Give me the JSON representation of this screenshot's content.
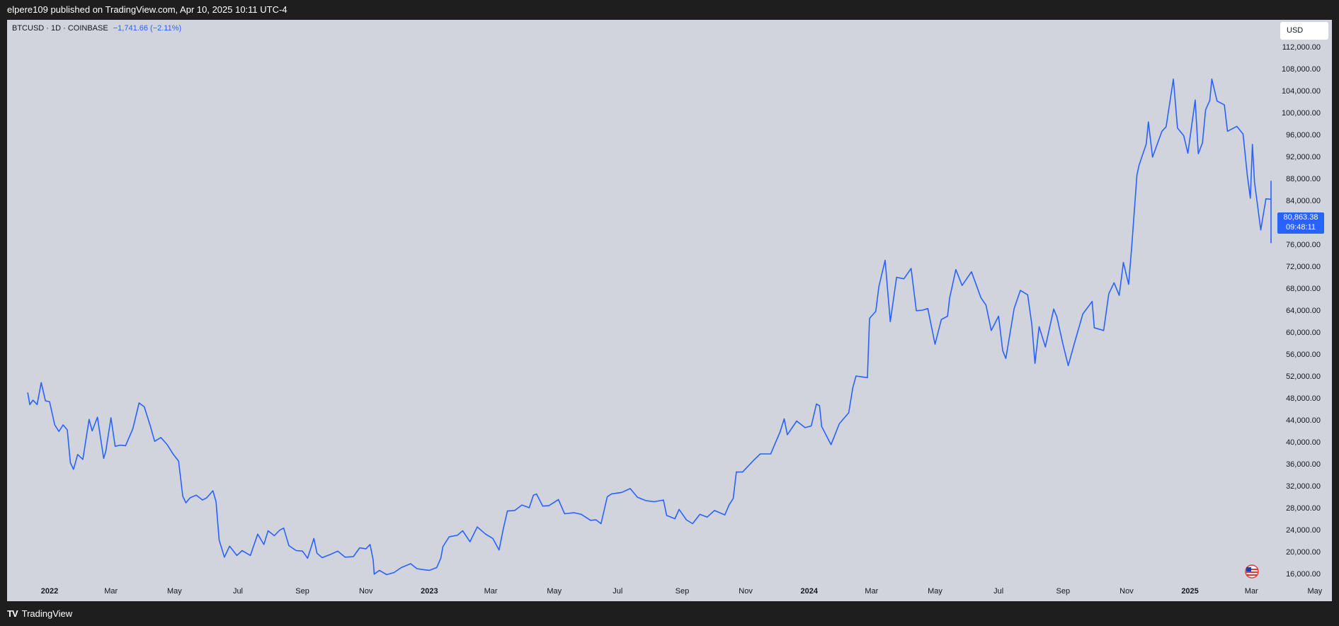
{
  "header": {
    "published": "elpere109 published on TradingView.com, Apr 10, 2025 10:11 UTC-4"
  },
  "footer": {
    "brand": "TradingView"
  },
  "symbol": {
    "name": "BTCUSD · 1D · COINBASE",
    "change": "−1,741.66 (−2.11%)"
  },
  "currency_button": "USD",
  "price_badge": {
    "price": "80,863.38",
    "timer": "09:48:11"
  },
  "colors": {
    "line": "#2962ff",
    "background": "#d1d4dc",
    "frame": "#1e1e1e"
  },
  "icons": {
    "flag": "us-flag-icon",
    "logo": "tradingview-logo-icon"
  },
  "chart_data": {
    "type": "line",
    "title": "BTCUSD · 1D · COINBASE",
    "xlabel": "",
    "ylabel": "",
    "ylim": [
      14000,
      114000
    ],
    "y_ticks": [
      "16,000.00",
      "20,000.00",
      "24,000.00",
      "28,000.00",
      "32,000.00",
      "36,000.00",
      "40,000.00",
      "44,000.00",
      "48,000.00",
      "52,000.00",
      "56,000.00",
      "60,000.00",
      "64,000.00",
      "68,000.00",
      "72,000.00",
      "76,000.00",
      "84,000.00",
      "88,000.00",
      "92,000.00",
      "96,000.00",
      "100,000.00",
      "104,000.00",
      "108,000.00",
      "112,000.00"
    ],
    "x_ticks": [
      {
        "label": "2022",
        "date": "2022-01-01",
        "bold": true
      },
      {
        "label": "Mar",
        "date": "2022-03-01"
      },
      {
        "label": "May",
        "date": "2022-05-01"
      },
      {
        "label": "Jul",
        "date": "2022-07-01"
      },
      {
        "label": "Sep",
        "date": "2022-09-01"
      },
      {
        "label": "Nov",
        "date": "2022-11-01"
      },
      {
        "label": "2023",
        "date": "2023-01-01",
        "bold": true
      },
      {
        "label": "Mar",
        "date": "2023-03-01"
      },
      {
        "label": "May",
        "date": "2023-05-01"
      },
      {
        "label": "Jul",
        "date": "2023-07-01"
      },
      {
        "label": "Sep",
        "date": "2023-09-01"
      },
      {
        "label": "Nov",
        "date": "2023-11-01"
      },
      {
        "label": "2024",
        "date": "2024-01-01",
        "bold": true
      },
      {
        "label": "Mar",
        "date": "2024-03-01"
      },
      {
        "label": "May",
        "date": "2024-05-01"
      },
      {
        "label": "Jul",
        "date": "2024-07-01"
      },
      {
        "label": "Sep",
        "date": "2024-09-01"
      },
      {
        "label": "Nov",
        "date": "2024-11-01"
      },
      {
        "label": "2025",
        "date": "2025-01-01",
        "bold": true
      },
      {
        "label": "Mar",
        "date": "2025-03-01"
      },
      {
        "label": "May",
        "date": "2025-05-01"
      }
    ],
    "series": [
      {
        "values": [
          [
            "2021-12-11",
            49000
          ],
          [
            "2021-12-13",
            46800
          ],
          [
            "2021-12-16",
            47600
          ],
          [
            "2021-12-20",
            46800
          ],
          [
            "2021-12-24",
            50800
          ],
          [
            "2021-12-28",
            47500
          ],
          [
            "2022-01-01",
            47300
          ],
          [
            "2022-01-06",
            43100
          ],
          [
            "2022-01-10",
            41900
          ],
          [
            "2022-01-14",
            43100
          ],
          [
            "2022-01-18",
            42200
          ],
          [
            "2022-01-21",
            36200
          ],
          [
            "2022-01-24",
            35000
          ],
          [
            "2022-01-28",
            37700
          ],
          [
            "2022-02-02",
            36800
          ],
          [
            "2022-02-08",
            44100
          ],
          [
            "2022-02-11",
            42000
          ],
          [
            "2022-02-16",
            44500
          ],
          [
            "2022-02-22",
            37000
          ],
          [
            "2022-02-24",
            38300
          ],
          [
            "2022-03-01",
            44400
          ],
          [
            "2022-03-05",
            39200
          ],
          [
            "2022-03-10",
            39400
          ],
          [
            "2022-03-15",
            39300
          ],
          [
            "2022-03-22",
            42400
          ],
          [
            "2022-03-28",
            47100
          ],
          [
            "2022-04-02",
            46400
          ],
          [
            "2022-04-08",
            42800
          ],
          [
            "2022-04-12",
            40100
          ],
          [
            "2022-04-18",
            40800
          ],
          [
            "2022-04-24",
            39500
          ],
          [
            "2022-04-30",
            37700
          ],
          [
            "2022-05-05",
            36500
          ],
          [
            "2022-05-09",
            30100
          ],
          [
            "2022-05-12",
            28900
          ],
          [
            "2022-05-16",
            29800
          ],
          [
            "2022-05-22",
            30300
          ],
          [
            "2022-05-28",
            29400
          ],
          [
            "2022-06-01",
            29800
          ],
          [
            "2022-06-07",
            31100
          ],
          [
            "2022-06-10",
            29100
          ],
          [
            "2022-06-13",
            22100
          ],
          [
            "2022-06-18",
            19000
          ],
          [
            "2022-06-23",
            21000
          ],
          [
            "2022-06-30",
            19300
          ],
          [
            "2022-07-05",
            20200
          ],
          [
            "2022-07-13",
            19300
          ],
          [
            "2022-07-20",
            23200
          ],
          [
            "2022-07-26",
            21300
          ],
          [
            "2022-07-30",
            23800
          ],
          [
            "2022-08-05",
            22900
          ],
          [
            "2022-08-10",
            23900
          ],
          [
            "2022-08-14",
            24300
          ],
          [
            "2022-08-19",
            21100
          ],
          [
            "2022-08-26",
            20200
          ],
          [
            "2022-09-01",
            20100
          ],
          [
            "2022-09-06",
            18800
          ],
          [
            "2022-09-12",
            22400
          ],
          [
            "2022-09-15",
            19700
          ],
          [
            "2022-09-20",
            18900
          ],
          [
            "2022-09-28",
            19500
          ],
          [
            "2022-10-05",
            20100
          ],
          [
            "2022-10-12",
            19000
          ],
          [
            "2022-10-20",
            19100
          ],
          [
            "2022-10-26",
            20700
          ],
          [
            "2022-11-01",
            20500
          ],
          [
            "2022-11-05",
            21300
          ],
          [
            "2022-11-08",
            18500
          ],
          [
            "2022-11-09",
            15900
          ],
          [
            "2022-11-14",
            16600
          ],
          [
            "2022-11-21",
            15800
          ],
          [
            "2022-11-28",
            16200
          ],
          [
            "2022-12-05",
            17100
          ],
          [
            "2022-12-14",
            17800
          ],
          [
            "2022-12-20",
            16900
          ],
          [
            "2022-12-27",
            16700
          ],
          [
            "2023-01-01",
            16600
          ],
          [
            "2023-01-08",
            17100
          ],
          [
            "2023-01-12",
            18800
          ],
          [
            "2023-01-14",
            20900
          ],
          [
            "2023-01-20",
            22700
          ],
          [
            "2023-01-28",
            23000
          ],
          [
            "2023-02-02",
            23800
          ],
          [
            "2023-02-09",
            21800
          ],
          [
            "2023-02-16",
            24500
          ],
          [
            "2023-02-24",
            23200
          ],
          [
            "2023-03-03",
            22400
          ],
          [
            "2023-03-09",
            20300
          ],
          [
            "2023-03-13",
            24100
          ],
          [
            "2023-03-17",
            27400
          ],
          [
            "2023-03-24",
            27500
          ],
          [
            "2023-03-31",
            28500
          ],
          [
            "2023-04-07",
            28000
          ],
          [
            "2023-04-11",
            30300
          ],
          [
            "2023-04-14",
            30500
          ],
          [
            "2023-04-20",
            28300
          ],
          [
            "2023-04-26",
            28400
          ],
          [
            "2023-05-05",
            29500
          ],
          [
            "2023-05-11",
            26900
          ],
          [
            "2023-05-20",
            27100
          ],
          [
            "2023-05-27",
            26800
          ],
          [
            "2023-06-05",
            25700
          ],
          [
            "2023-06-10",
            25800
          ],
          [
            "2023-06-15",
            25100
          ],
          [
            "2023-06-21",
            30000
          ],
          [
            "2023-06-25",
            30500
          ],
          [
            "2023-07-05",
            30800
          ],
          [
            "2023-07-13",
            31500
          ],
          [
            "2023-07-20",
            29900
          ],
          [
            "2023-07-28",
            29300
          ],
          [
            "2023-08-05",
            29100
          ],
          [
            "2023-08-14",
            29400
          ],
          [
            "2023-08-17",
            26600
          ],
          [
            "2023-08-25",
            26000
          ],
          [
            "2023-08-29",
            27700
          ],
          [
            "2023-09-05",
            25800
          ],
          [
            "2023-09-11",
            25100
          ],
          [
            "2023-09-18",
            26800
          ],
          [
            "2023-09-25",
            26300
          ],
          [
            "2023-10-02",
            27500
          ],
          [
            "2023-10-12",
            26700
          ],
          [
            "2023-10-16",
            28500
          ],
          [
            "2023-10-20",
            29700
          ],
          [
            "2023-10-23",
            34500
          ],
          [
            "2023-10-29",
            34500
          ],
          [
            "2023-11-09",
            36700
          ],
          [
            "2023-11-15",
            37800
          ],
          [
            "2023-11-25",
            37800
          ],
          [
            "2023-12-04",
            41800
          ],
          [
            "2023-12-08",
            44200
          ],
          [
            "2023-12-11",
            41300
          ],
          [
            "2023-12-20",
            43800
          ],
          [
            "2023-12-28",
            42600
          ],
          [
            "2024-01-03",
            42900
          ],
          [
            "2024-01-08",
            46900
          ],
          [
            "2024-01-11",
            46600
          ],
          [
            "2024-01-13",
            42800
          ],
          [
            "2024-01-22",
            39500
          ],
          [
            "2024-01-30",
            43300
          ],
          [
            "2024-02-08",
            45300
          ],
          [
            "2024-02-12",
            49900
          ],
          [
            "2024-02-15",
            52000
          ],
          [
            "2024-02-26",
            51700
          ],
          [
            "2024-02-28",
            62500
          ],
          [
            "2024-03-05",
            63800
          ],
          [
            "2024-03-08",
            68300
          ],
          [
            "2024-03-14",
            73100
          ],
          [
            "2024-03-19",
            61900
          ],
          [
            "2024-03-25",
            70000
          ],
          [
            "2024-04-01",
            69700
          ],
          [
            "2024-04-08",
            71600
          ],
          [
            "2024-04-13",
            63900
          ],
          [
            "2024-04-19",
            64000
          ],
          [
            "2024-04-24",
            64300
          ],
          [
            "2024-05-01",
            57800
          ],
          [
            "2024-05-07",
            62300
          ],
          [
            "2024-05-13",
            62900
          ],
          [
            "2024-05-15",
            66200
          ],
          [
            "2024-05-21",
            71400
          ],
          [
            "2024-05-27",
            68500
          ],
          [
            "2024-06-05",
            71000
          ],
          [
            "2024-06-14",
            66300
          ],
          [
            "2024-06-19",
            64900
          ],
          [
            "2024-06-24",
            60300
          ],
          [
            "2024-07-01",
            62900
          ],
          [
            "2024-07-05",
            56600
          ],
          [
            "2024-07-08",
            55200
          ],
          [
            "2024-07-16",
            64300
          ],
          [
            "2024-07-22",
            67600
          ],
          [
            "2024-07-29",
            66800
          ],
          [
            "2024-08-02",
            61400
          ],
          [
            "2024-08-05",
            54300
          ],
          [
            "2024-08-09",
            61000
          ],
          [
            "2024-08-15",
            57300
          ],
          [
            "2024-08-23",
            64200
          ],
          [
            "2024-08-26",
            62800
          ],
          [
            "2024-09-01",
            57700
          ],
          [
            "2024-09-06",
            53900
          ],
          [
            "2024-09-12",
            58000
          ],
          [
            "2024-09-20",
            63300
          ],
          [
            "2024-09-29",
            65600
          ],
          [
            "2024-10-01",
            60800
          ],
          [
            "2024-10-10",
            60300
          ],
          [
            "2024-10-15",
            67000
          ],
          [
            "2024-10-20",
            69000
          ],
          [
            "2024-10-25",
            66700
          ],
          [
            "2024-10-29",
            72700
          ],
          [
            "2024-11-03",
            68700
          ],
          [
            "2024-11-06",
            75600
          ],
          [
            "2024-11-11",
            88600
          ],
          [
            "2024-11-13",
            90400
          ],
          [
            "2024-11-20",
            94300
          ],
          [
            "2024-11-22",
            98300
          ],
          [
            "2024-11-26",
            91900
          ],
          [
            "2024-12-05",
            96600
          ],
          [
            "2024-12-09",
            97400
          ],
          [
            "2024-12-16",
            106100
          ],
          [
            "2024-12-20",
            97200
          ],
          [
            "2024-12-26",
            95800
          ],
          [
            "2024-12-30",
            92600
          ],
          [
            "2025-01-06",
            102300
          ],
          [
            "2025-01-09",
            92500
          ],
          [
            "2025-01-13",
            94500
          ],
          [
            "2025-01-16",
            100500
          ],
          [
            "2025-01-20",
            102200
          ],
          [
            "2025-01-22",
            106100
          ],
          [
            "2025-01-27",
            102100
          ],
          [
            "2025-02-03",
            101400
          ],
          [
            "2025-02-06",
            96600
          ],
          [
            "2025-02-15",
            97500
          ],
          [
            "2025-02-21",
            96100
          ],
          [
            "2025-02-25",
            88700
          ],
          [
            "2025-02-28",
            84400
          ],
          [
            "2025-03-02",
            94200
          ],
          [
            "2025-03-04",
            87300
          ],
          [
            "2025-03-10",
            78600
          ],
          [
            "2025-03-15",
            84300
          ],
          [
            "2025-03-20",
            84200
          ],
          [
            "2025-03-24",
            87500
          ],
          [
            "2025-03-28",
            84400
          ],
          [
            "2025-04-02",
            82500
          ],
          [
            "2025-04-06",
            78200
          ],
          [
            "2025-04-07",
            79200
          ],
          [
            "2025-04-08",
            76300
          ],
          [
            "2025-04-09",
            82600
          ],
          [
            "2025-04-10",
            80863.38
          ]
        ]
      }
    ],
    "grid": false,
    "legend": "none"
  }
}
